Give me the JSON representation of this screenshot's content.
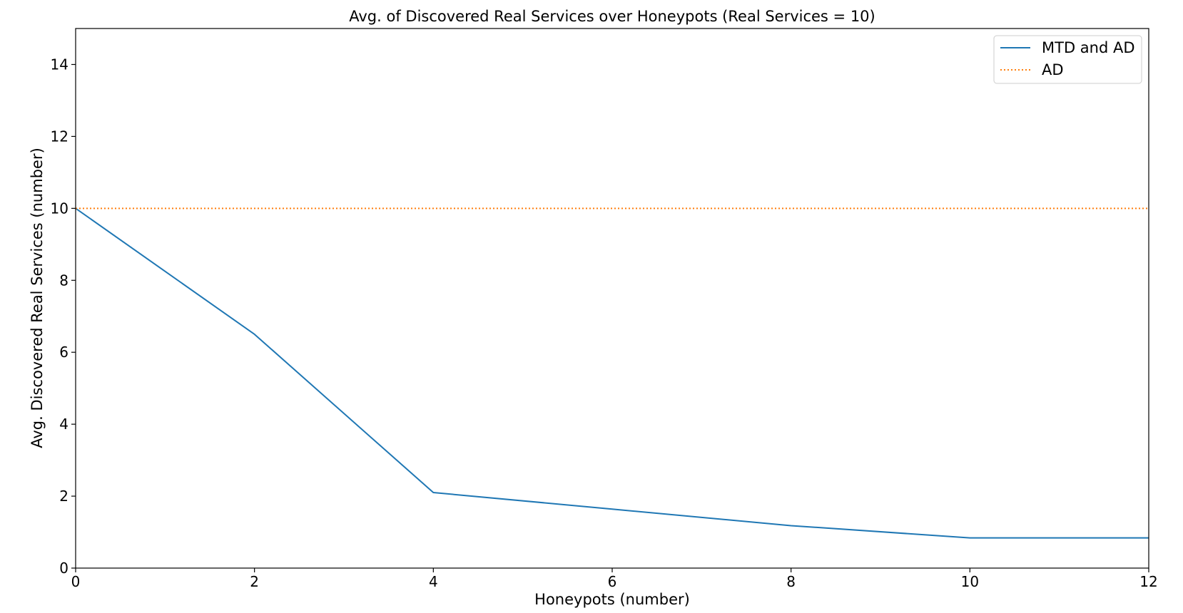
{
  "chart_data": {
    "type": "line",
    "title": "Avg. of Discovered Real Services over Honeypots (Real Services = 10)",
    "xlabel": "Honeypots (number)",
    "ylabel": "Avg. Discovered Real Services (number)",
    "xlim": [
      0,
      12
    ],
    "ylim": [
      0,
      15
    ],
    "xticks": [
      0,
      2,
      4,
      6,
      8,
      10,
      12
    ],
    "yticks": [
      0,
      2,
      4,
      6,
      8,
      10,
      12,
      14
    ],
    "grid": false,
    "legend_position": "top-right",
    "series": [
      {
        "name": "MTD and AD",
        "color": "#1f77b4",
        "style": "solid",
        "x": [
          0,
          2,
          4,
          6,
          8,
          10,
          12
        ],
        "y": [
          10.0,
          6.5,
          2.1,
          1.64,
          1.18,
          0.84,
          0.84
        ]
      },
      {
        "name": "AD",
        "color": "#ff7f0e",
        "style": "dotted",
        "x": [
          0,
          12
        ],
        "y": [
          10,
          10
        ]
      }
    ]
  }
}
